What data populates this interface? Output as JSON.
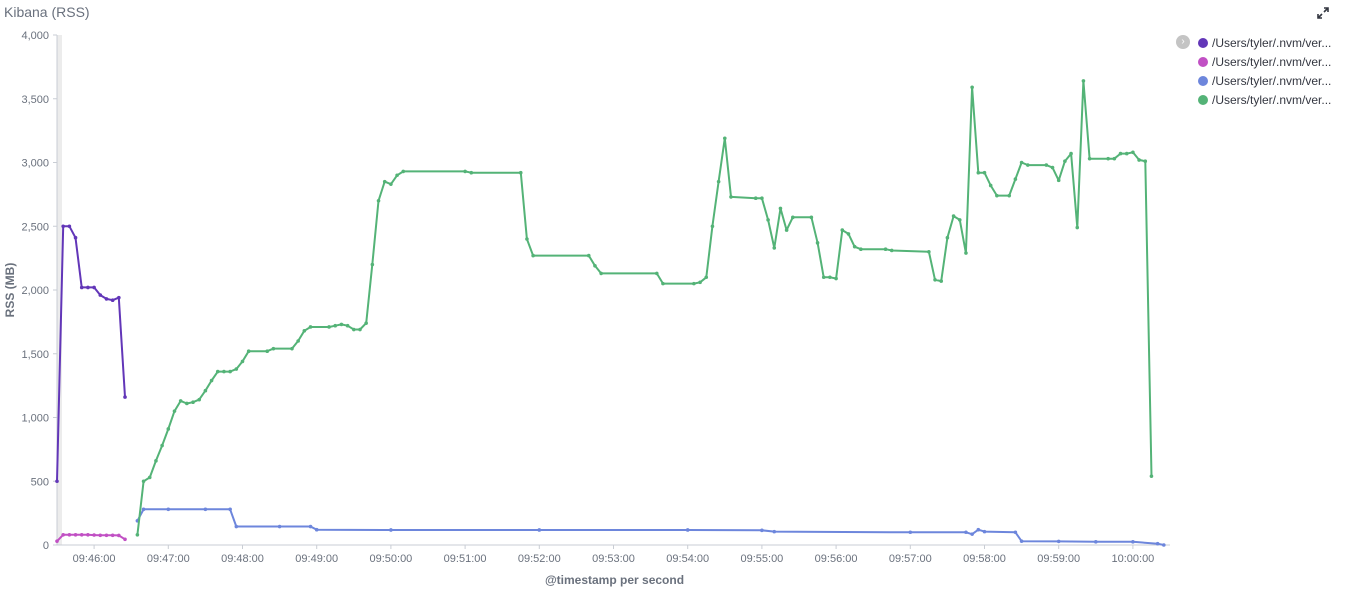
{
  "panel": {
    "title": "Kibana (RSS)",
    "expand_icon": "fullscreen-icon"
  },
  "legend": {
    "toggle_icon": "chevron-right-icon",
    "placement": "right"
  },
  "chart_data": {
    "type": "line",
    "xlabel": "@timestamp per second",
    "ylabel": "RSS (MB)",
    "x_range": [
      "09:45:30",
      "10:00:30"
    ],
    "ylim": [
      0,
      4000
    ],
    "yticks": [
      0,
      500,
      1000,
      1500,
      2000,
      2500,
      3000,
      3500,
      4000
    ],
    "ytick_labels": [
      "0",
      "500",
      "1,000",
      "1,500",
      "2,000",
      "2,500",
      "3,000",
      "3,500",
      "4,000"
    ],
    "xticks": [
      "09:46:00",
      "09:47:00",
      "09:48:00",
      "09:49:00",
      "09:50:00",
      "09:51:00",
      "09:52:00",
      "09:53:00",
      "09:54:00",
      "09:55:00",
      "09:56:00",
      "09:57:00",
      "09:58:00",
      "09:59:00",
      "10:00:00"
    ],
    "grid": false,
    "series": [
      {
        "name": "/Users/tyler/.nvm/ver...",
        "color": "#6236b8",
        "points": [
          [
            "09:45:30",
            500
          ],
          [
            "09:45:35",
            2500
          ],
          [
            "09:45:40",
            2500
          ],
          [
            "09:45:45",
            2410
          ],
          [
            "09:45:50",
            2020
          ],
          [
            "09:45:55",
            2020
          ],
          [
            "09:46:00",
            2020
          ],
          [
            "09:46:05",
            1960
          ],
          [
            "09:46:10",
            1930
          ],
          [
            "09:46:15",
            1920
          ],
          [
            "09:46:20",
            1940
          ],
          [
            "09:46:25",
            1160
          ]
        ]
      },
      {
        "name": "/Users/tyler/.nvm/ver...",
        "color": "#c150c4",
        "points": [
          [
            "09:45:30",
            30
          ],
          [
            "09:45:35",
            80
          ],
          [
            "09:45:40",
            80
          ],
          [
            "09:45:45",
            80
          ],
          [
            "09:45:50",
            80
          ],
          [
            "09:45:55",
            80
          ],
          [
            "09:46:00",
            78
          ],
          [
            "09:46:05",
            76
          ],
          [
            "09:46:10",
            76
          ],
          [
            "09:46:15",
            76
          ],
          [
            "09:46:20",
            75
          ],
          [
            "09:46:25",
            45
          ]
        ]
      },
      {
        "name": "/Users/tyler/.nvm/ver...",
        "color": "#6d86dc",
        "points": [
          [
            "09:46:35",
            190
          ],
          [
            "09:46:40",
            280
          ],
          [
            "09:47:00",
            280
          ],
          [
            "09:47:30",
            280
          ],
          [
            "09:47:50",
            280
          ],
          [
            "09:47:55",
            145
          ],
          [
            "09:48:30",
            145
          ],
          [
            "09:48:55",
            145
          ],
          [
            "09:49:00",
            120
          ],
          [
            "09:50:00",
            118
          ],
          [
            "09:52:00",
            118
          ],
          [
            "09:54:00",
            118
          ],
          [
            "09:55:00",
            115
          ],
          [
            "09:55:10",
            105
          ],
          [
            "09:57:00",
            100
          ],
          [
            "09:57:45",
            100
          ],
          [
            "09:57:50",
            85
          ],
          [
            "09:57:55",
            120
          ],
          [
            "09:58:00",
            105
          ],
          [
            "09:58:25",
            100
          ],
          [
            "09:58:30",
            30
          ],
          [
            "09:59:00",
            28
          ],
          [
            "09:59:30",
            25
          ],
          [
            "10:00:00",
            25
          ],
          [
            "10:00:20",
            10
          ],
          [
            "10:00:25",
            0
          ]
        ]
      },
      {
        "name": "/Users/tyler/.nvm/ver...",
        "color": "#54b377",
        "points": [
          [
            "09:46:35",
            80
          ],
          [
            "09:46:40",
            500
          ],
          [
            "09:46:45",
            530
          ],
          [
            "09:46:50",
            660
          ],
          [
            "09:46:55",
            780
          ],
          [
            "09:47:00",
            910
          ],
          [
            "09:47:05",
            1050
          ],
          [
            "09:47:10",
            1130
          ],
          [
            "09:47:15",
            1110
          ],
          [
            "09:47:20",
            1120
          ],
          [
            "09:47:25",
            1140
          ],
          [
            "09:47:30",
            1210
          ],
          [
            "09:47:35",
            1290
          ],
          [
            "09:47:40",
            1360
          ],
          [
            "09:47:45",
            1360
          ],
          [
            "09:47:50",
            1360
          ],
          [
            "09:47:55",
            1380
          ],
          [
            "09:48:00",
            1440
          ],
          [
            "09:48:05",
            1520
          ],
          [
            "09:48:20",
            1520
          ],
          [
            "09:48:25",
            1540
          ],
          [
            "09:48:40",
            1540
          ],
          [
            "09:48:45",
            1600
          ],
          [
            "09:48:50",
            1680
          ],
          [
            "09:48:55",
            1710
          ],
          [
            "09:49:10",
            1710
          ],
          [
            "09:49:15",
            1720
          ],
          [
            "09:49:20",
            1730
          ],
          [
            "09:49:25",
            1720
          ],
          [
            "09:49:30",
            1690
          ],
          [
            "09:49:35",
            1690
          ],
          [
            "09:49:40",
            1740
          ],
          [
            "09:49:45",
            2200
          ],
          [
            "09:49:50",
            2700
          ],
          [
            "09:49:55",
            2850
          ],
          [
            "09:50:00",
            2830
          ],
          [
            "09:50:05",
            2900
          ],
          [
            "09:50:10",
            2930
          ],
          [
            "09:51:00",
            2930
          ],
          [
            "09:51:05",
            2920
          ],
          [
            "09:51:45",
            2920
          ],
          [
            "09:51:50",
            2400
          ],
          [
            "09:51:55",
            2270
          ],
          [
            "09:52:40",
            2270
          ],
          [
            "09:52:45",
            2190
          ],
          [
            "09:52:50",
            2130
          ],
          [
            "09:53:35",
            2130
          ],
          [
            "09:53:40",
            2050
          ],
          [
            "09:54:05",
            2050
          ],
          [
            "09:54:10",
            2060
          ],
          [
            "09:54:15",
            2100
          ],
          [
            "09:54:20",
            2500
          ],
          [
            "09:54:25",
            2850
          ],
          [
            "09:54:30",
            3190
          ],
          [
            "09:54:35",
            2730
          ],
          [
            "09:54:55",
            2720
          ],
          [
            "09:55:00",
            2720
          ],
          [
            "09:55:05",
            2550
          ],
          [
            "09:55:10",
            2330
          ],
          [
            "09:55:15",
            2640
          ],
          [
            "09:55:20",
            2470
          ],
          [
            "09:55:25",
            2570
          ],
          [
            "09:55:40",
            2570
          ],
          [
            "09:55:45",
            2370
          ],
          [
            "09:55:50",
            2100
          ],
          [
            "09:55:55",
            2100
          ],
          [
            "09:56:00",
            2090
          ],
          [
            "09:56:05",
            2470
          ],
          [
            "09:56:10",
            2440
          ],
          [
            "09:56:15",
            2340
          ],
          [
            "09:56:20",
            2320
          ],
          [
            "09:56:40",
            2320
          ],
          [
            "09:56:45",
            2310
          ],
          [
            "09:57:15",
            2300
          ],
          [
            "09:57:20",
            2080
          ],
          [
            "09:57:25",
            2070
          ],
          [
            "09:57:30",
            2410
          ],
          [
            "09:57:35",
            2580
          ],
          [
            "09:57:40",
            2550
          ],
          [
            "09:57:45",
            2290
          ],
          [
            "09:57:50",
            3590
          ],
          [
            "09:57:55",
            2920
          ],
          [
            "09:58:00",
            2920
          ],
          [
            "09:58:05",
            2820
          ],
          [
            "09:58:10",
            2740
          ],
          [
            "09:58:20",
            2740
          ],
          [
            "09:58:25",
            2870
          ],
          [
            "09:58:30",
            3000
          ],
          [
            "09:58:35",
            2980
          ],
          [
            "09:58:50",
            2980
          ],
          [
            "09:58:55",
            2960
          ],
          [
            "09:59:00",
            2860
          ],
          [
            "09:59:05",
            3010
          ],
          [
            "09:59:10",
            3070
          ],
          [
            "09:59:15",
            2490
          ],
          [
            "09:59:20",
            3640
          ],
          [
            "09:59:25",
            3030
          ],
          [
            "09:59:40",
            3030
          ],
          [
            "09:59:45",
            3030
          ],
          [
            "09:59:50",
            3070
          ],
          [
            "09:59:55",
            3070
          ],
          [
            "10:00:00",
            3080
          ],
          [
            "10:00:05",
            3020
          ],
          [
            "10:00:10",
            3010
          ],
          [
            "10:00:15",
            540
          ]
        ]
      }
    ]
  }
}
